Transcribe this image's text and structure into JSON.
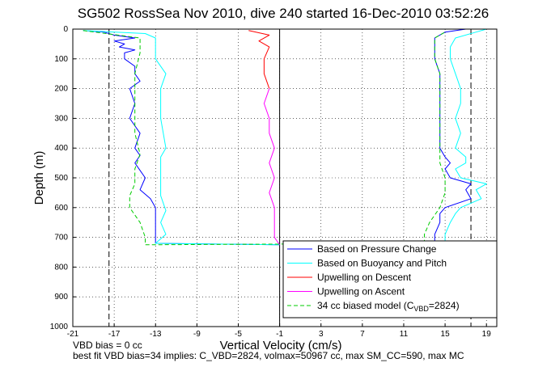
{
  "chart_data": {
    "type": "line",
    "title": "SG502 RossSea Nov 2010, dive 240 started 16-Dec-2010 03:52:26",
    "xlabel": "Vertical Velocity (cm/s)",
    "ylabel": "Depth (m)",
    "xlim": [
      -21,
      20
    ],
    "ylim": [
      1000,
      0
    ],
    "y_reversed": true,
    "grid": true,
    "x_ticks": [
      -21,
      -17,
      -13,
      -9,
      -5,
      -1,
      3,
      7,
      11,
      15,
      19
    ],
    "y_ticks": [
      0,
      100,
      200,
      300,
      400,
      500,
      600,
      700,
      800,
      900,
      1000
    ],
    "vertical_lines": [
      {
        "x": -1,
        "style": "solid"
      },
      {
        "x": -17.5,
        "style": "dashed"
      },
      {
        "x": 17.5,
        "style": "dashed"
      }
    ],
    "legend": {
      "placement": "bottom-right",
      "entries": [
        {
          "label": "Based on Pressure Change",
          "color": "#0000ff",
          "dash": "solid"
        },
        {
          "label": "Based on Buoyancy and Pitch",
          "color": "#00ffff",
          "dash": "solid"
        },
        {
          "label": "Upwelling on Descent",
          "color": "#ff0000",
          "dash": "solid"
        },
        {
          "label": "Upwelling on Ascent",
          "color": "#ff00ff",
          "dash": "solid"
        },
        {
          "label": "34 cc biased model (C",
          "sub": "VBD",
          "tail": "=2824)",
          "color": "#00cc00",
          "dash": "dashed"
        }
      ]
    },
    "series": [
      {
        "name": "Based on Pressure Change",
        "color": "#0000ff",
        "dash": "solid",
        "points": [
          [
            -20,
            5
          ],
          [
            -18,
            10
          ],
          [
            -17,
            20
          ],
          [
            -15,
            30
          ],
          [
            -17,
            40
          ],
          [
            -16,
            50
          ],
          [
            -16.5,
            60
          ],
          [
            -15,
            70
          ],
          [
            -16,
            80
          ],
          [
            -16,
            100
          ],
          [
            -15,
            125
          ],
          [
            -15,
            150
          ],
          [
            -14.5,
            175
          ],
          [
            -15.5,
            200
          ],
          [
            -15,
            250
          ],
          [
            -15.5,
            300
          ],
          [
            -14.5,
            350
          ],
          [
            -15,
            400
          ],
          [
            -14.5,
            425
          ],
          [
            -15,
            450
          ],
          [
            -14.5,
            475
          ],
          [
            -14,
            500
          ],
          [
            -14.5,
            540
          ],
          [
            -13.5,
            570
          ],
          [
            -13,
            600
          ],
          [
            -13,
            650
          ],
          [
            -13,
            690
          ],
          [
            -13,
            720
          ],
          [
            -1,
            725
          ]
        ]
      },
      {
        "name": "Based on Buoyancy and Pitch",
        "color": "#00ffff",
        "dash": "solid",
        "points": [
          [
            -20,
            5
          ],
          [
            -14,
            15
          ],
          [
            -13,
            30
          ],
          [
            -13,
            60
          ],
          [
            -13,
            100
          ],
          [
            -12,
            150
          ],
          [
            -12.5,
            200
          ],
          [
            -12.5,
            300
          ],
          [
            -12,
            400
          ],
          [
            -12.5,
            430
          ],
          [
            -12.5,
            500
          ],
          [
            -12.5,
            560
          ],
          [
            -12,
            610
          ],
          [
            -12.5,
            650
          ],
          [
            -12,
            690
          ],
          [
            -13,
            720
          ],
          [
            -1,
            725
          ]
        ]
      },
      {
        "name": "Upwelling on Descent",
        "color": "#ff0000",
        "dash": "solid",
        "points": [
          [
            -4,
            5
          ],
          [
            -2,
            20
          ],
          [
            -3,
            40
          ],
          [
            -2,
            60
          ],
          [
            -2.5,
            100
          ],
          [
            -2.5,
            150
          ],
          [
            -2,
            200
          ]
        ]
      },
      {
        "name": "Upwelling on Ascent",
        "color": "#ff00ff",
        "dash": "solid",
        "points": [
          [
            -2,
            200
          ],
          [
            -2.5,
            250
          ],
          [
            -2,
            300
          ],
          [
            -2,
            350
          ],
          [
            -1.5,
            400
          ],
          [
            -2,
            450
          ],
          [
            -1.5,
            500
          ],
          [
            -2,
            550
          ],
          [
            -1.5,
            600
          ],
          [
            -1.5,
            650
          ],
          [
            -1.5,
            700
          ],
          [
            -1,
            725
          ]
        ]
      },
      {
        "name": "Based on Pressure Change",
        "color": "#0000ff",
        "dash": "solid",
        "points": [
          [
            14,
            720
          ],
          [
            14,
            690
          ],
          [
            14.5,
            650
          ],
          [
            14.5,
            620
          ],
          [
            15,
            600
          ],
          [
            17.5,
            570
          ],
          [
            17,
            540
          ],
          [
            17.5,
            520
          ],
          [
            15.5,
            500
          ],
          [
            15,
            470
          ],
          [
            15.5,
            450
          ],
          [
            15,
            430
          ],
          [
            14.5,
            400
          ],
          [
            14.5,
            350
          ],
          [
            14.5,
            300
          ],
          [
            14.5,
            250
          ],
          [
            14.5,
            200
          ],
          [
            14.5,
            150
          ],
          [
            14,
            100
          ],
          [
            14,
            60
          ],
          [
            14,
            30
          ],
          [
            15,
            10
          ],
          [
            17,
            0
          ]
        ]
      },
      {
        "name": "Based on Buoyancy and Pitch",
        "color": "#00ffff",
        "dash": "solid",
        "points": [
          [
            15,
            720
          ],
          [
            15,
            690
          ],
          [
            15.5,
            650
          ],
          [
            16,
            620
          ],
          [
            16.5,
            600
          ],
          [
            18.5,
            570
          ],
          [
            18,
            540
          ],
          [
            19,
            520
          ],
          [
            16.5,
            500
          ],
          [
            16,
            470
          ],
          [
            17,
            450
          ],
          [
            17,
            430
          ],
          [
            16,
            400
          ],
          [
            16.5,
            350
          ],
          [
            16,
            300
          ],
          [
            16.5,
            250
          ],
          [
            16.5,
            200
          ],
          [
            16,
            150
          ],
          [
            15.5,
            100
          ],
          [
            15.5,
            60
          ],
          [
            16,
            30
          ],
          [
            18,
            10
          ],
          [
            19,
            0
          ]
        ]
      },
      {
        "name": "34 cc biased model (C VBD=2824)",
        "color": "#00cc00",
        "dash": "dashed",
        "points": [
          [
            -20,
            5
          ],
          [
            -14.5,
            30
          ],
          [
            -14.5,
            80
          ],
          [
            -15,
            150
          ],
          [
            -15,
            250
          ],
          [
            -15,
            350
          ],
          [
            -14.5,
            420
          ],
          [
            -15,
            470
          ],
          [
            -15,
            520
          ],
          [
            -15.5,
            560
          ],
          [
            -15.5,
            600
          ],
          [
            -14.5,
            650
          ],
          [
            -14,
            700
          ],
          [
            -14,
            725
          ],
          [
            13,
            720
          ],
          [
            13,
            690
          ],
          [
            13.5,
            650
          ],
          [
            14.5,
            600
          ],
          [
            15,
            550
          ],
          [
            15,
            500
          ],
          [
            14.5,
            450
          ],
          [
            14.5,
            400
          ],
          [
            14.5,
            350
          ],
          [
            14.5,
            300
          ],
          [
            14.5,
            250
          ],
          [
            14.5,
            200
          ],
          [
            14.5,
            150
          ],
          [
            14,
            100
          ],
          [
            14,
            60
          ],
          [
            14,
            30
          ],
          [
            15,
            10
          ]
        ]
      }
    ]
  },
  "footer": {
    "line1": "VBD bias = 0 cc",
    "line2": "best fit VBD bias=34 implies: C_VBD=2824, volmax=50967 cc, max SM_CC=590, max MC"
  }
}
